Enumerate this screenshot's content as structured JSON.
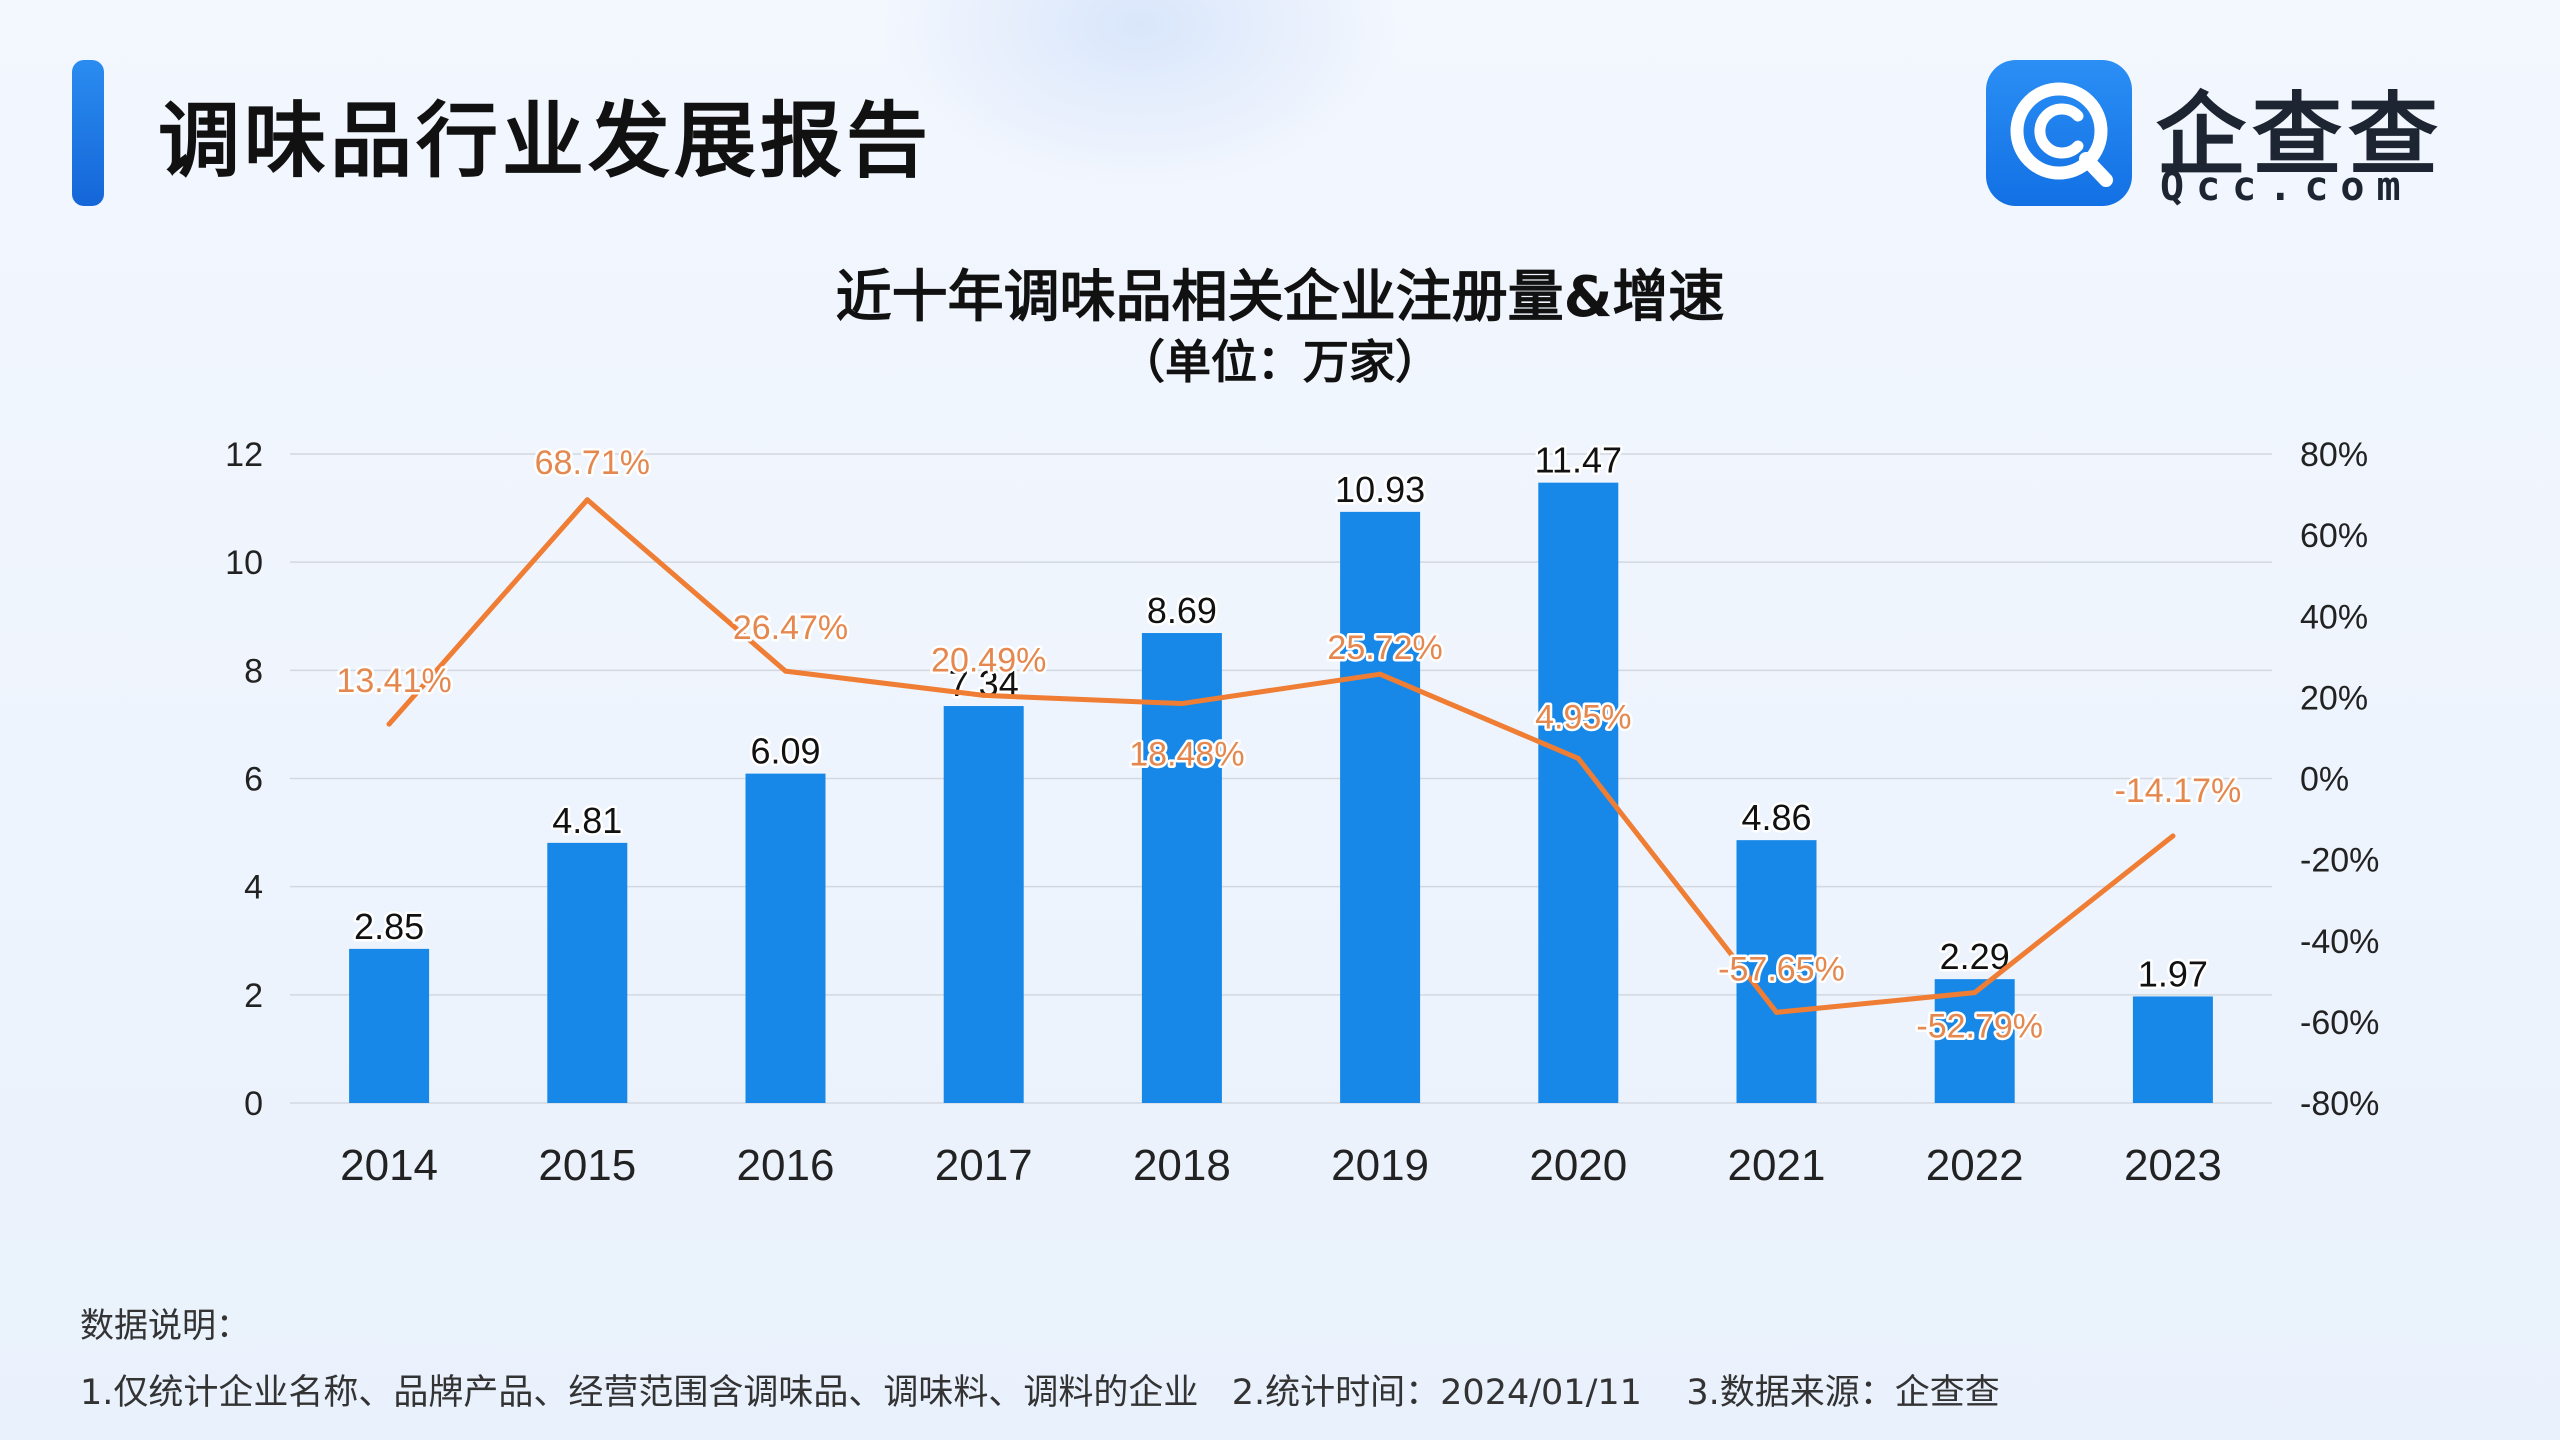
{
  "header": {
    "title": "调味品行业发展报告",
    "logo_name": "企查查",
    "logo_domain": "Qcc.com"
  },
  "colors": {
    "bar": "#1888e8",
    "line": "#ef7d34",
    "brand": "#1a7cec"
  },
  "chart_data": {
    "type": "bar",
    "title": "近十年调味品相关企业注册量&增速",
    "subtitle": "（单位：万家）",
    "categories": [
      "2014",
      "2015",
      "2016",
      "2017",
      "2018",
      "2019",
      "2020",
      "2021",
      "2022",
      "2023"
    ],
    "series": [
      {
        "values": [
          2.85,
          4.81,
          6.09,
          7.34,
          8.69,
          10.93,
          11.47,
          4.86,
          2.29,
          1.97
        ],
        "labels": [
          "2.85",
          "4.81",
          "6.09",
          "7.34",
          "8.69",
          "10.93",
          "11.47",
          "4.86",
          "2.29",
          "1.97"
        ],
        "type": "bar",
        "axis": "left"
      },
      {
        "values": [
          13.41,
          68.71,
          26.47,
          20.49,
          18.48,
          25.72,
          4.95,
          -57.65,
          -52.79,
          -14.17
        ],
        "labels": [
          "13.41%",
          "68.71%",
          "26.47%",
          "20.49%",
          "18.48%",
          "25.72%",
          "4.95%",
          "-57.65%",
          "-52.79%",
          "-14.17%"
        ],
        "type": "line",
        "axis": "right"
      }
    ],
    "ylim": [
      0,
      12
    ],
    "yticks": [
      "0",
      "2",
      "4",
      "6",
      "8",
      "10",
      "12"
    ],
    "y2lim": [
      -80,
      80
    ],
    "y2ticks": [
      "-80%",
      "-60%",
      "-40%",
      "-20%",
      "0%",
      "20%",
      "40%",
      "60%",
      "80%"
    ],
    "grid": true,
    "legend": "none"
  },
  "notes": {
    "heading": "数据说明：",
    "text": "1.仅统计企业名称、品牌产品、经营范围含调味品、调味料、调料的企业   2.统计时间：2024/01/11    3.数据来源：企查查"
  }
}
